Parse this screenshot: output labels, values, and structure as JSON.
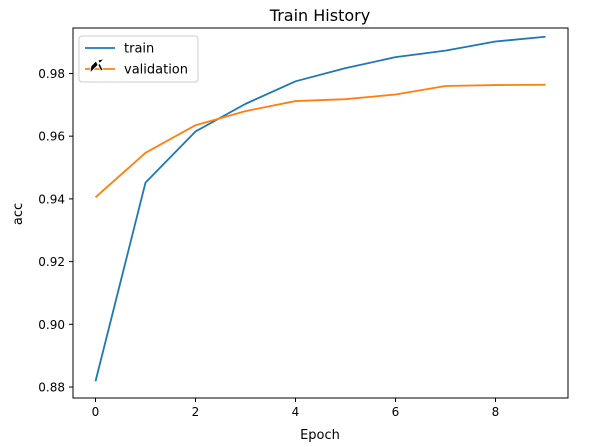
{
  "chart_data": {
    "type": "line",
    "title": "Train History",
    "xlabel": "Epoch",
    "ylabel": "acc",
    "xlim": [
      -0.45,
      9.45
    ],
    "ylim": [
      0.8765,
      0.9945
    ],
    "xticks": [
      0,
      2,
      4,
      6,
      8
    ],
    "yticks": [
      0.88,
      0.9,
      0.92,
      0.94,
      0.96,
      0.98
    ],
    "ytick_labels": [
      "0.88",
      "0.90",
      "0.92",
      "0.94",
      "0.96",
      "0.98"
    ],
    "grid": false,
    "legend_position": "upper-left",
    "x": [
      0,
      1,
      2,
      3,
      4,
      5,
      6,
      7,
      8,
      9
    ],
    "series": [
      {
        "name": "train",
        "color": "#1f77b4",
        "values": [
          0.8818,
          0.9452,
          0.9615,
          0.9703,
          0.9775,
          0.9817,
          0.9852,
          0.9873,
          0.9902,
          0.9917
        ]
      },
      {
        "name": "validation",
        "color": "#ff7f0e",
        "values": [
          0.9405,
          0.9547,
          0.9635,
          0.968,
          0.9712,
          0.9718,
          0.9733,
          0.976,
          0.9763,
          0.9764
        ]
      }
    ]
  }
}
